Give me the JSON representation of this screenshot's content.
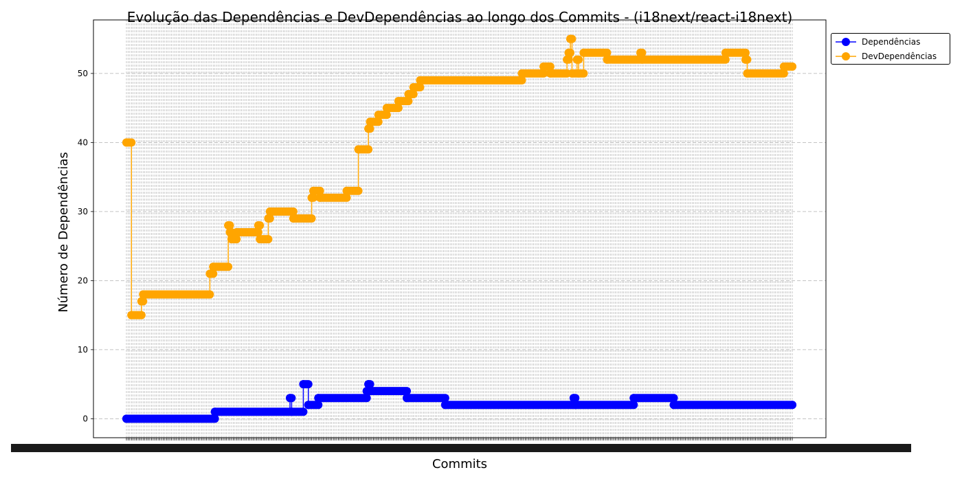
{
  "chart_data": {
    "type": "line",
    "title": "Evolução das Dependências e DevDependências ao longo dos Commits - (i18next/react-i18next)",
    "xlabel": "Commits",
    "ylabel": "Número de Dependências",
    "ylim": [
      -2.75,
      57.75
    ],
    "yticks": [
      0,
      10,
      20,
      30,
      40,
      50
    ],
    "grid": true,
    "legend_position": "outside-top-right",
    "x_tick_labels_note": "one overlapping, unreadable commit-hash label per commit",
    "commit_count": 400,
    "series": [
      {
        "name": "Dependências",
        "color": "#0000ff",
        "segments": [
          [
            0,
            0
          ],
          [
            53,
            0
          ],
          [
            53,
            1
          ],
          [
            98,
            1
          ],
          [
            98,
            3
          ],
          [
            99,
            3
          ],
          [
            99,
            1
          ],
          [
            106,
            1
          ],
          [
            106,
            5
          ],
          [
            109,
            5
          ],
          [
            109,
            2
          ],
          [
            115,
            2
          ],
          [
            115,
            3
          ],
          [
            144,
            3
          ],
          [
            144,
            4
          ],
          [
            145,
            4
          ],
          [
            145,
            5
          ],
          [
            146,
            5
          ],
          [
            146,
            4
          ],
          [
            168,
            4
          ],
          [
            168,
            3
          ],
          [
            191,
            3
          ],
          [
            191,
            2
          ],
          [
            268,
            2
          ],
          [
            268,
            3
          ],
          [
            269,
            3
          ],
          [
            269,
            2
          ],
          [
            304,
            2
          ],
          [
            304,
            3
          ],
          [
            328,
            3
          ],
          [
            328,
            2
          ],
          [
            399,
            2
          ]
        ]
      },
      {
        "name": "DevDependências",
        "color": "#ffa500",
        "segments": [
          [
            0,
            40
          ],
          [
            3,
            40
          ],
          [
            3,
            15
          ],
          [
            9,
            15
          ],
          [
            9,
            17
          ],
          [
            10,
            17
          ],
          [
            10,
            18
          ],
          [
            50,
            18
          ],
          [
            50,
            21
          ],
          [
            52,
            21
          ],
          [
            52,
            22
          ],
          [
            61,
            22
          ],
          [
            61,
            28
          ],
          [
            62,
            28
          ],
          [
            62,
            27
          ],
          [
            63,
            27
          ],
          [
            63,
            26
          ],
          [
            66,
            26
          ],
          [
            66,
            27
          ],
          [
            79,
            27
          ],
          [
            79,
            28
          ],
          [
            80,
            28
          ],
          [
            80,
            26
          ],
          [
            85,
            26
          ],
          [
            85,
            29
          ],
          [
            86,
            29
          ],
          [
            86,
            30
          ],
          [
            100,
            30
          ],
          [
            100,
            29
          ],
          [
            111,
            29
          ],
          [
            111,
            32
          ],
          [
            112,
            32
          ],
          [
            112,
            33
          ],
          [
            116,
            33
          ],
          [
            116,
            32
          ],
          [
            132,
            32
          ],
          [
            132,
            33
          ],
          [
            139,
            33
          ],
          [
            139,
            39
          ],
          [
            145,
            39
          ],
          [
            145,
            42
          ],
          [
            146,
            42
          ],
          [
            146,
            43
          ],
          [
            151,
            43
          ],
          [
            151,
            44
          ],
          [
            156,
            44
          ],
          [
            156,
            45
          ],
          [
            163,
            45
          ],
          [
            163,
            46
          ],
          [
            169,
            46
          ],
          [
            169,
            47
          ],
          [
            172,
            47
          ],
          [
            172,
            48
          ],
          [
            176,
            48
          ],
          [
            176,
            49
          ],
          [
            237,
            49
          ],
          [
            237,
            50
          ],
          [
            250,
            50
          ],
          [
            250,
            51
          ],
          [
            254,
            51
          ],
          [
            254,
            50
          ],
          [
            264,
            50
          ],
          [
            264,
            52
          ],
          [
            265,
            52
          ],
          [
            265,
            53
          ],
          [
            266,
            53
          ],
          [
            266,
            55
          ],
          [
            267,
            55
          ],
          [
            267,
            50
          ],
          [
            270,
            50
          ],
          [
            270,
            52
          ],
          [
            271,
            52
          ],
          [
            271,
            50
          ],
          [
            274,
            50
          ],
          [
            274,
            53
          ],
          [
            288,
            53
          ],
          [
            288,
            52
          ],
          [
            308,
            52
          ],
          [
            308,
            53
          ],
          [
            309,
            53
          ],
          [
            309,
            52
          ],
          [
            359,
            52
          ],
          [
            359,
            53
          ],
          [
            371,
            53
          ],
          [
            371,
            52
          ],
          [
            372,
            52
          ],
          [
            372,
            50
          ],
          [
            394,
            50
          ],
          [
            394,
            51
          ],
          [
            399,
            51
          ]
        ]
      }
    ]
  }
}
